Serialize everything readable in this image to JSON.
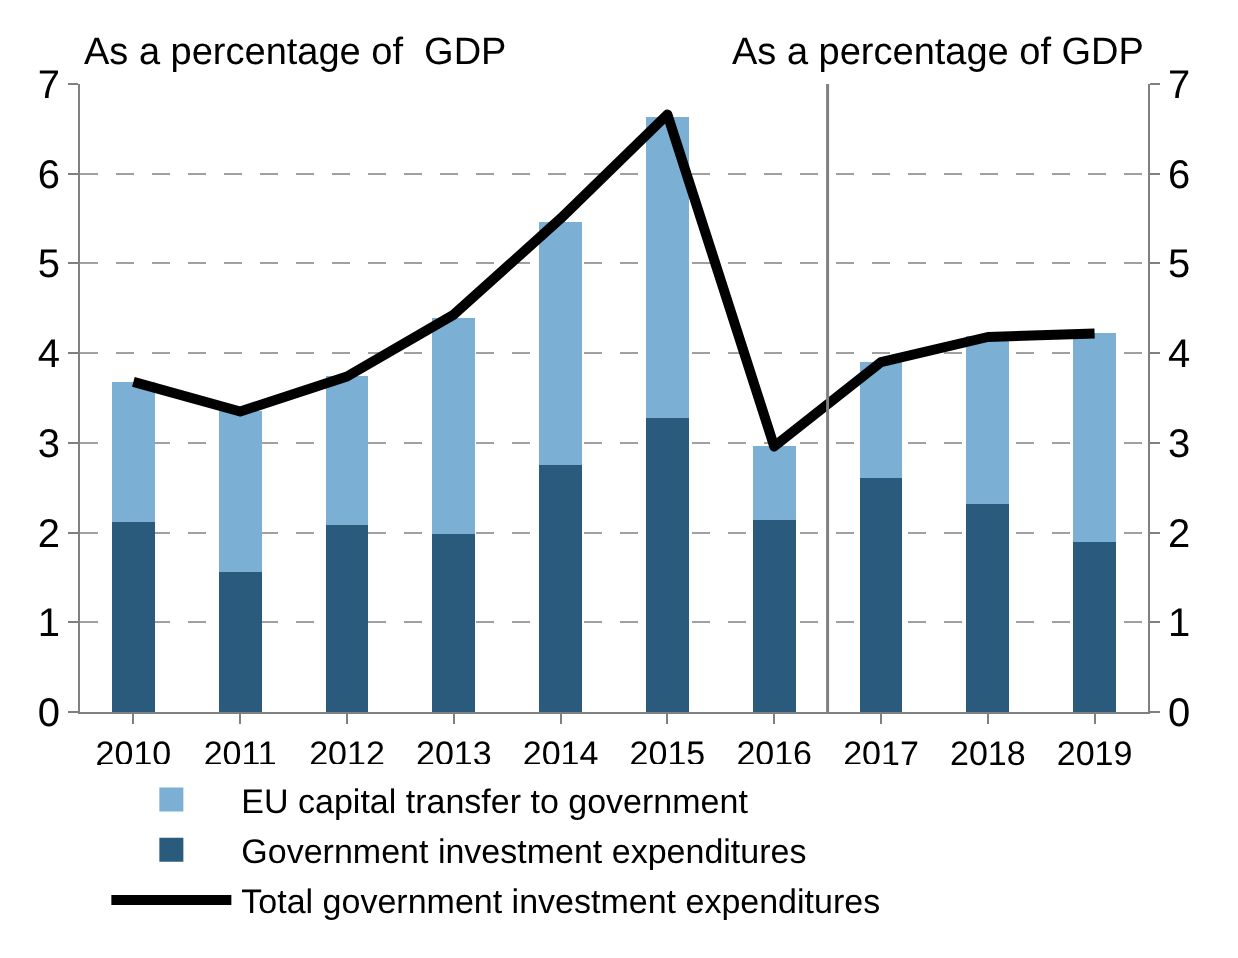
{
  "chart_data": {
    "type": "bar",
    "stacked": true,
    "ylabel": "As a percentage of  GDP",
    "y2label": "As a percentage of GDP",
    "x": [
      2010,
      2011,
      2012,
      2013,
      2014,
      2015,
      2016,
      2017,
      2018,
      2019
    ],
    "xlim": [
      2009.5,
      2019.5
    ],
    "xticks": [
      2010,
      2011,
      2012,
      2013,
      2014,
      2015,
      2016,
      2017,
      2018,
      2019
    ],
    "ref_lines": [
      {
        "axis": "x",
        "value": 2016.5,
        "color": "#808080"
      }
    ],
    "series": [
      {
        "name": "Government investment expenditures",
        "color": "#2a5a7c",
        "values": [
          2.12,
          1.56,
          2.09,
          1.98,
          2.75,
          3.28,
          2.14,
          2.61,
          2.32,
          1.9
        ]
      },
      {
        "name": "EU capital transfer to government",
        "color": "#7bafd4",
        "values": [
          1.56,
          1.79,
          1.65,
          2.41,
          2.71,
          3.35,
          0.82,
          1.29,
          1.87,
          2.32
        ]
      },
      {
        "name": "Total government investment expenditures",
        "type": "line",
        "color": "#000000",
        "values": [
          3.68,
          3.35,
          3.74,
          4.43,
          5.5,
          6.66,
          2.96,
          3.9,
          4.18,
          4.22
        ]
      }
    ],
    "ylim": [
      0,
      7
    ],
    "yticks": [
      0,
      1,
      2,
      3,
      4,
      5,
      6,
      7
    ],
    "y2lim": [
      0,
      7
    ],
    "y2ticks": [
      0,
      1,
      2,
      3,
      4,
      5,
      6,
      7
    ],
    "grid": "y",
    "legend": "bottom",
    "marker": "none",
    "line_style": "solid"
  }
}
